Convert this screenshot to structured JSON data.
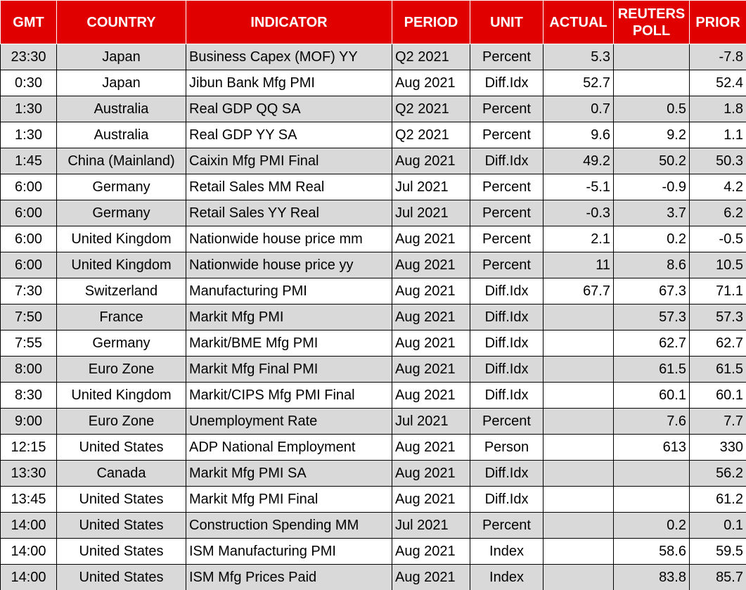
{
  "table": {
    "header": [
      "GMT",
      "COUNTRY",
      "INDICATOR",
      "PERIOD",
      "UNIT",
      "ACTUAL",
      "REUTERS POLL",
      "PRIOR"
    ],
    "rows": [
      [
        "23:30",
        "Japan",
        "Business Capex (MOF) YY",
        "Q2 2021",
        "Percent",
        "5.3",
        null,
        "-7.8"
      ],
      [
        "0:30",
        "Japan",
        "Jibun Bank Mfg PMI",
        "Aug 2021",
        "Diff.Idx",
        "52.7",
        null,
        "52.4"
      ],
      [
        "1:30",
        "Australia",
        "Real GDP QQ SA",
        "Q2 2021",
        "Percent",
        "0.7",
        "0.5",
        "1.8"
      ],
      [
        "1:30",
        "Australia",
        "Real GDP YY SA",
        "Q2 2021",
        "Percent",
        "9.6",
        "9.2",
        "1.1"
      ],
      [
        "1:45",
        "China (Mainland)",
        "Caixin Mfg PMI Final",
        "Aug 2021",
        "Diff.Idx",
        "49.2",
        "50.2",
        "50.3"
      ],
      [
        "6:00",
        "Germany",
        "Retail Sales MM Real",
        "Jul 2021",
        "Percent",
        "-5.1",
        "-0.9",
        "4.2"
      ],
      [
        "6:00",
        "Germany",
        "Retail Sales YY Real",
        "Jul 2021",
        "Percent",
        "-0.3",
        "3.7",
        "6.2"
      ],
      [
        "6:00",
        "United Kingdom",
        "Nationwide house price mm",
        "Aug 2021",
        "Percent",
        "2.1",
        "0.2",
        "-0.5"
      ],
      [
        "6:00",
        "United Kingdom",
        "Nationwide house price yy",
        "Aug 2021",
        "Percent",
        "11",
        "8.6",
        "10.5"
      ],
      [
        "7:30",
        "Switzerland",
        "Manufacturing PMI",
        "Aug 2021",
        "Diff.Idx",
        "67.7",
        "67.3",
        "71.1"
      ],
      [
        "7:50",
        "France",
        "Markit Mfg PMI",
        "Aug 2021",
        "Diff.Idx",
        null,
        "57.3",
        "57.3"
      ],
      [
        "7:55",
        "Germany",
        "Markit/BME Mfg PMI",
        "Aug 2021",
        "Diff.Idx",
        null,
        "62.7",
        "62.7"
      ],
      [
        "8:00",
        "Euro Zone",
        "Markit Mfg Final PMI",
        "Aug 2021",
        "Diff.Idx",
        null,
        "61.5",
        "61.5"
      ],
      [
        "8:30",
        "United Kingdom",
        "Markit/CIPS Mfg PMI Final",
        "Aug 2021",
        "Diff.Idx",
        null,
        "60.1",
        "60.1"
      ],
      [
        "9:00",
        "Euro Zone",
        "Unemployment Rate",
        "Jul 2021",
        "Percent",
        null,
        "7.6",
        "7.7"
      ],
      [
        "12:15",
        "United States",
        "ADP National Employment",
        "Aug 2021",
        "Person",
        null,
        "613",
        "330"
      ],
      [
        "13:30",
        "Canada",
        "Markit Mfg PMI SA",
        "Aug 2021",
        "Diff.Idx",
        null,
        null,
        "56.2"
      ],
      [
        "13:45",
        "United States",
        "Markit Mfg PMI Final",
        "Aug 2021",
        "Diff.Idx",
        null,
        null,
        "61.2"
      ],
      [
        "14:00",
        "United States",
        "Construction Spending MM",
        "Jul 2021",
        "Percent",
        null,
        "0.2",
        "0.1"
      ],
      [
        "14:00",
        "United States",
        "ISM Manufacturing PMI",
        "Aug 2021",
        "Index",
        null,
        "58.6",
        "59.5"
      ],
      [
        "14:00",
        "United States",
        "ISM Mfg Prices Paid",
        "Aug 2021",
        "Index",
        null,
        "83.8",
        "85.7"
      ]
    ]
  }
}
